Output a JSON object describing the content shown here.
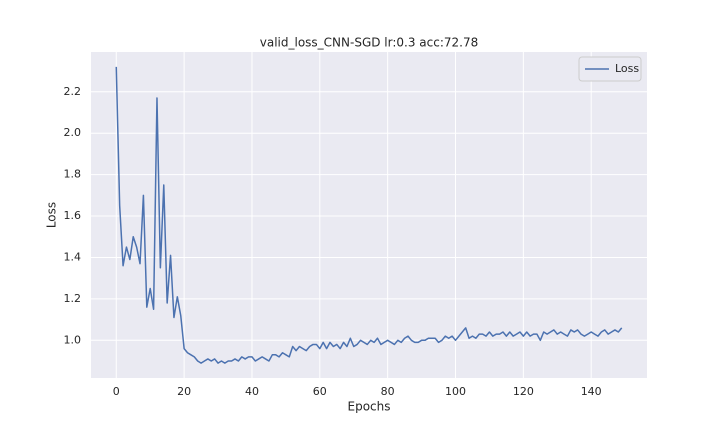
{
  "chart_data": {
    "type": "line",
    "title": "valid_loss_CNN-SGD lr:0.3 acc:72.78",
    "x_label": "Epochs",
    "y_label": "Loss",
    "x": [
      0,
      1,
      2,
      3,
      4,
      5,
      6,
      7,
      8,
      9,
      10,
      11,
      12,
      13,
      14,
      15,
      16,
      17,
      18,
      19,
      20,
      21,
      22,
      23,
      24,
      25,
      26,
      27,
      28,
      29,
      30,
      31,
      32,
      33,
      34,
      35,
      36,
      37,
      38,
      39,
      40,
      41,
      42,
      43,
      44,
      45,
      46,
      47,
      48,
      49,
      50,
      51,
      52,
      53,
      54,
      55,
      56,
      57,
      58,
      59,
      60,
      61,
      62,
      63,
      64,
      65,
      66,
      67,
      68,
      69,
      70,
      71,
      72,
      73,
      74,
      75,
      76,
      77,
      78,
      79,
      80,
      81,
      82,
      83,
      84,
      85,
      86,
      87,
      88,
      89,
      90,
      91,
      92,
      93,
      94,
      95,
      96,
      97,
      98,
      99,
      100,
      101,
      102,
      103,
      104,
      105,
      106,
      107,
      108,
      109,
      110,
      111,
      112,
      113,
      114,
      115,
      116,
      117,
      118,
      119,
      120,
      121,
      122,
      123,
      124,
      125,
      126,
      127,
      128,
      129,
      130,
      131,
      132,
      133,
      134,
      135,
      136,
      137,
      138,
      139,
      140,
      141,
      142,
      143,
      144,
      145,
      146,
      147,
      148,
      149
    ],
    "series": [
      {
        "name": "Loss",
        "color": "#4c72b0",
        "values": [
          2.32,
          1.65,
          1.36,
          1.45,
          1.39,
          1.5,
          1.45,
          1.37,
          1.7,
          1.16,
          1.25,
          1.15,
          2.17,
          1.35,
          1.75,
          1.18,
          1.41,
          1.11,
          1.21,
          1.12,
          0.96,
          0.94,
          0.93,
          0.92,
          0.9,
          0.89,
          0.9,
          0.91,
          0.9,
          0.91,
          0.89,
          0.9,
          0.89,
          0.9,
          0.9,
          0.91,
          0.9,
          0.92,
          0.91,
          0.92,
          0.92,
          0.9,
          0.91,
          0.92,
          0.91,
          0.9,
          0.93,
          0.93,
          0.92,
          0.94,
          0.93,
          0.92,
          0.97,
          0.95,
          0.97,
          0.96,
          0.95,
          0.97,
          0.98,
          0.98,
          0.96,
          0.99,
          0.96,
          0.99,
          0.97,
          0.98,
          0.96,
          0.99,
          0.97,
          1.01,
          0.97,
          0.98,
          1.0,
          0.99,
          0.98,
          1.0,
          0.99,
          1.01,
          0.98,
          0.99,
          1.0,
          0.99,
          0.98,
          1.0,
          0.99,
          1.01,
          1.02,
          1.0,
          0.99,
          0.99,
          1.0,
          1.0,
          1.01,
          1.01,
          1.01,
          0.99,
          1.0,
          1.02,
          1.01,
          1.02,
          1.0,
          1.02,
          1.04,
          1.06,
          1.01,
          1.02,
          1.01,
          1.03,
          1.03,
          1.02,
          1.04,
          1.02,
          1.03,
          1.03,
          1.04,
          1.02,
          1.04,
          1.02,
          1.03,
          1.04,
          1.02,
          1.04,
          1.02,
          1.03,
          1.03,
          1.0,
          1.04,
          1.03,
          1.04,
          1.05,
          1.03,
          1.04,
          1.03,
          1.02,
          1.05,
          1.04,
          1.05,
          1.03,
          1.02,
          1.03,
          1.04,
          1.03,
          1.02,
          1.04,
          1.05,
          1.03,
          1.04,
          1.05,
          1.04,
          1.06
        ]
      }
    ],
    "xlim": [
      -7.45,
      156.45
    ],
    "xticks": [
      0,
      20,
      40,
      60,
      80,
      100,
      120,
      140
    ],
    "ylim": [
      0.818,
      2.392
    ],
    "yticks": [
      {
        "value": 1,
        "label": "1.0"
      },
      {
        "value": 1.2,
        "label": "1.2"
      },
      {
        "value": 1.4,
        "label": "1.4"
      },
      {
        "value": 1.6,
        "label": "1.6"
      },
      {
        "value": 1.8,
        "label": "1.8"
      },
      {
        "value": 2,
        "label": "2.0"
      },
      {
        "value": 2.2,
        "label": "2.2"
      }
    ],
    "grid": true,
    "legend": "upper right"
  }
}
